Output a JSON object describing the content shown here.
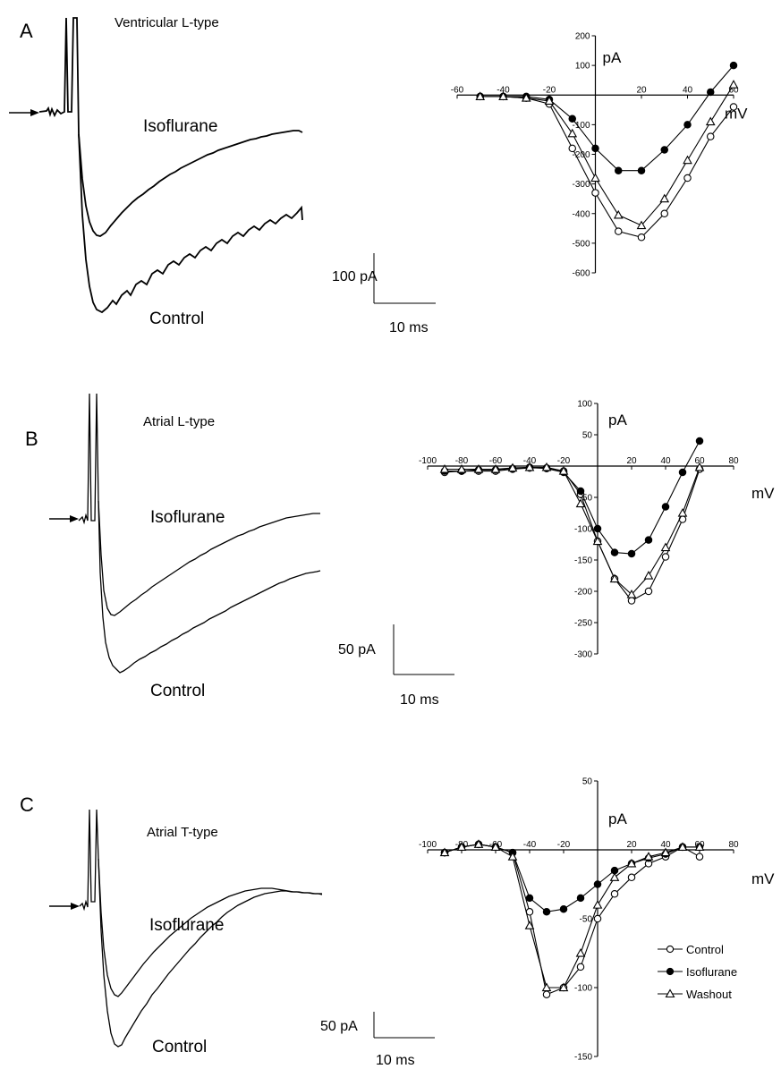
{
  "panels": [
    {
      "letter": "A",
      "title": "Ventricular L-type",
      "trace_labels": {
        "top": "Isoflurane",
        "bottom": "Control"
      },
      "scale_bar": {
        "current": "100 pA",
        "time": "10 ms"
      }
    },
    {
      "letter": "B",
      "title": "Atrial L-type",
      "trace_labels": {
        "top": "Isoflurane",
        "bottom": "Control"
      },
      "scale_bar": {
        "current": "50 pA",
        "time": "10 ms"
      }
    },
    {
      "letter": "C",
      "title": "Atrial T-type",
      "trace_labels": {
        "top": "Isoflurane",
        "bottom": "Control"
      },
      "scale_bar": {
        "current": "50 pA",
        "time": "10 ms"
      }
    }
  ],
  "legend": [
    "Control",
    "Isoflurane",
    "Washout"
  ],
  "colors": {
    "ink": "#000000",
    "background": "#ffffff"
  },
  "chart_data": [
    {
      "type": "line",
      "panel": "A",
      "xlabel": "mV",
      "ylabel": "pA",
      "xlim": [
        -60,
        60
      ],
      "ylim": [
        -600,
        200
      ],
      "xticks": [
        -60,
        -40,
        -20,
        20,
        40,
        60
      ],
      "xtick_labels": [
        "-60",
        "-40",
        "-20",
        "20",
        "40",
        "60"
      ],
      "yticks": [
        200,
        100,
        -100,
        -200,
        -300,
        -400,
        -500,
        -600
      ],
      "ytick_labels": [
        "200",
        "100",
        "-100",
        "-200",
        "-300",
        "-400",
        "-500",
        "-600"
      ],
      "series": [
        {
          "name": "Control",
          "marker": "open-circle",
          "x": [
            -50,
            -40,
            -30,
            -20,
            -10,
            0,
            10,
            20,
            30,
            40,
            50,
            60
          ],
          "y": [
            -5,
            -5,
            -10,
            -30,
            -180,
            -330,
            -460,
            -480,
            -400,
            -280,
            -140,
            -40
          ]
        },
        {
          "name": "Isoflurane",
          "marker": "filled-circle",
          "x": [
            -50,
            -40,
            -30,
            -20,
            -10,
            0,
            10,
            20,
            30,
            40,
            50,
            60
          ],
          "y": [
            -5,
            -5,
            -5,
            -15,
            -80,
            -180,
            -255,
            -255,
            -185,
            -100,
            10,
            100
          ]
        },
        {
          "name": "Washout",
          "marker": "open-triangle",
          "x": [
            -50,
            -40,
            -30,
            -20,
            -10,
            0,
            10,
            20,
            30,
            40,
            50,
            60
          ],
          "y": [
            -5,
            -5,
            -10,
            -20,
            -130,
            -280,
            -405,
            -440,
            -350,
            -220,
            -90,
            35
          ]
        }
      ]
    },
    {
      "type": "line",
      "panel": "B",
      "xlabel": "mV",
      "ylabel": "pA",
      "xlim": [
        -100,
        80
      ],
      "ylim": [
        -300,
        100
      ],
      "xticks": [
        -100,
        -80,
        -60,
        -40,
        -20,
        20,
        40,
        60,
        80
      ],
      "xtick_labels": [
        "-100",
        "-80",
        "-60",
        "-40",
        "-20",
        "20",
        "40",
        "60",
        "80"
      ],
      "yticks": [
        100,
        50,
        -50,
        -100,
        -150,
        -200,
        -250,
        -300
      ],
      "ytick_labels": [
        "100",
        "50",
        "-50",
        "-100",
        "-150",
        "-200",
        "-250",
        "-300"
      ],
      "series": [
        {
          "name": "Control",
          "marker": "open-circle",
          "x": [
            -90,
            -80,
            -70,
            -60,
            -50,
            -40,
            -30,
            -20,
            -10,
            0,
            10,
            20,
            30,
            40,
            50,
            60
          ],
          "y": [
            -10,
            -8,
            -8,
            -8,
            -5,
            -3,
            -3,
            -8,
            -45,
            -120,
            -180,
            -215,
            -200,
            -145,
            -85,
            -5
          ]
        },
        {
          "name": "Isoflurane",
          "marker": "filled-circle",
          "x": [
            -90,
            -80,
            -70,
            -60,
            -50,
            -40,
            -30,
            -20,
            -10,
            0,
            10,
            20,
            30,
            40,
            50,
            60
          ],
          "y": [
            -8,
            -8,
            -6,
            -6,
            -4,
            -2,
            -4,
            -10,
            -40,
            -100,
            -138,
            -140,
            -118,
            -65,
            -10,
            40
          ]
        },
        {
          "name": "Washout",
          "marker": "open-triangle",
          "x": [
            -90,
            -80,
            -70,
            -60,
            -50,
            -40,
            -30,
            -20,
            -10,
            0,
            10,
            20,
            30,
            40,
            50,
            60
          ],
          "y": [
            -5,
            -5,
            -5,
            -5,
            -3,
            -2,
            -2,
            -8,
            -60,
            -120,
            -180,
            -205,
            -175,
            -130,
            -75,
            -2
          ]
        }
      ]
    },
    {
      "type": "line",
      "panel": "C",
      "xlabel": "mV",
      "ylabel": "pA",
      "xlim": [
        -100,
        80
      ],
      "ylim": [
        -150,
        50
      ],
      "xticks": [
        -100,
        -80,
        -60,
        -40,
        -20,
        20,
        40,
        60,
        80
      ],
      "xtick_labels": [
        "-100",
        "-80",
        "-60",
        "-40",
        "-20",
        "20",
        "40",
        "60",
        "80"
      ],
      "yticks": [
        50,
        -50,
        -100,
        -150
      ],
      "ytick_labels": [
        "50",
        "-50",
        "-100",
        "-150"
      ],
      "legend_position": "bottom-right",
      "series": [
        {
          "name": "Control",
          "marker": "open-circle",
          "x": [
            -90,
            -80,
            -70,
            -60,
            -50,
            -40,
            -30,
            -20,
            -10,
            0,
            10,
            20,
            30,
            40,
            50,
            60
          ],
          "y": [
            -2,
            2,
            4,
            2,
            -2,
            -45,
            -105,
            -100,
            -85,
            -50,
            -32,
            -20,
            -10,
            -5,
            2,
            -5
          ]
        },
        {
          "name": "Isoflurane",
          "marker": "filled-circle",
          "x": [
            -90,
            -80,
            -70,
            -60,
            -50,
            -40,
            -30,
            -20,
            -10,
            0,
            10,
            20,
            30,
            40,
            50,
            60
          ],
          "y": [
            -2,
            2,
            4,
            2,
            -2,
            -35,
            -45,
            -43,
            -35,
            -25,
            -15,
            -10,
            -6,
            -3,
            2,
            2
          ]
        },
        {
          "name": "Washout",
          "marker": "open-triangle",
          "x": [
            -90,
            -80,
            -70,
            -60,
            -50,
            -40,
            -30,
            -20,
            -10,
            0,
            10,
            20,
            30,
            40,
            50,
            60
          ],
          "y": [
            -2,
            2,
            4,
            2,
            -5,
            -55,
            -100,
            -100,
            -75,
            -40,
            -20,
            -10,
            -5,
            -2,
            2,
            2
          ]
        }
      ]
    }
  ]
}
